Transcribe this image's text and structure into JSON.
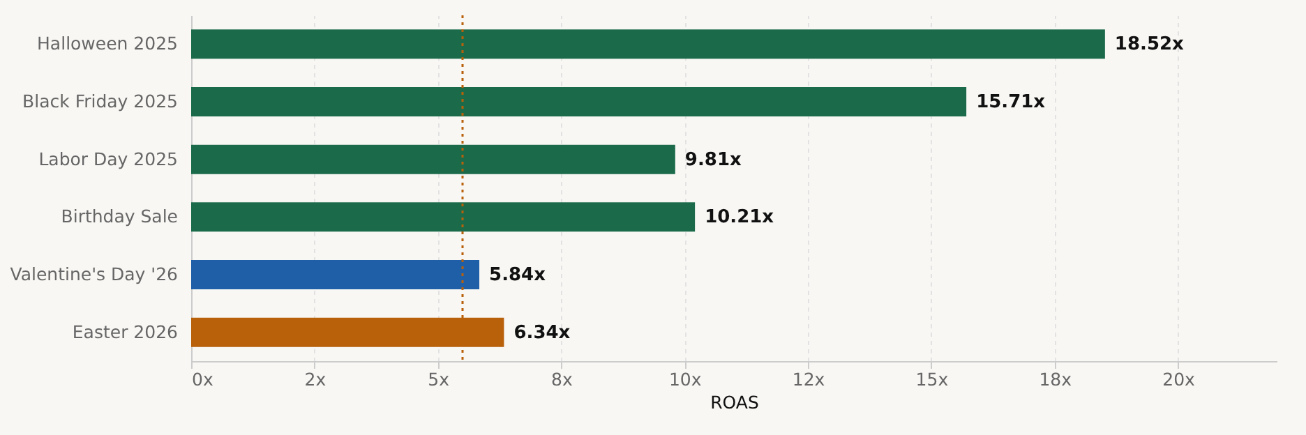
{
  "chart_data": {
    "type": "bar",
    "orientation": "horizontal",
    "xlabel": "ROAS",
    "categories": [
      "Halloween 2025",
      "Black Friday 2025",
      "Labor Day 2025",
      "Birthday Sale",
      "Valentine's Day '26",
      "Easter 2026"
    ],
    "values": [
      18.52,
      15.71,
      9.81,
      10.21,
      5.84,
      6.34
    ],
    "colors": [
      "#1b6b4b",
      "#1b6b4b",
      "#1b6b4b",
      "#1b6b4b",
      "#1f5fa8",
      "#b8610a"
    ],
    "value_labels": [
      "18.52x",
      "15.71x",
      "9.81x",
      "10.21x",
      "5.84x",
      "6.34x"
    ],
    "xlim": [
      0,
      22
    ],
    "xticks": [
      {
        "value": 0,
        "label": "0x"
      },
      {
        "value": 2.5,
        "label": "2x"
      },
      {
        "value": 5,
        "label": "5x"
      },
      {
        "value": 7.5,
        "label": "8x"
      },
      {
        "value": 10,
        "label": "10x"
      },
      {
        "value": 12.5,
        "label": "12x"
      },
      {
        "value": 15,
        "label": "15x"
      },
      {
        "value": 17.5,
        "label": "18x"
      },
      {
        "value": 20,
        "label": "20x"
      }
    ],
    "ref_lines": [
      {
        "axis": "x",
        "value": 5.5,
        "color": "#b8610a",
        "line_style": "dotted"
      }
    ],
    "grid": "x"
  }
}
